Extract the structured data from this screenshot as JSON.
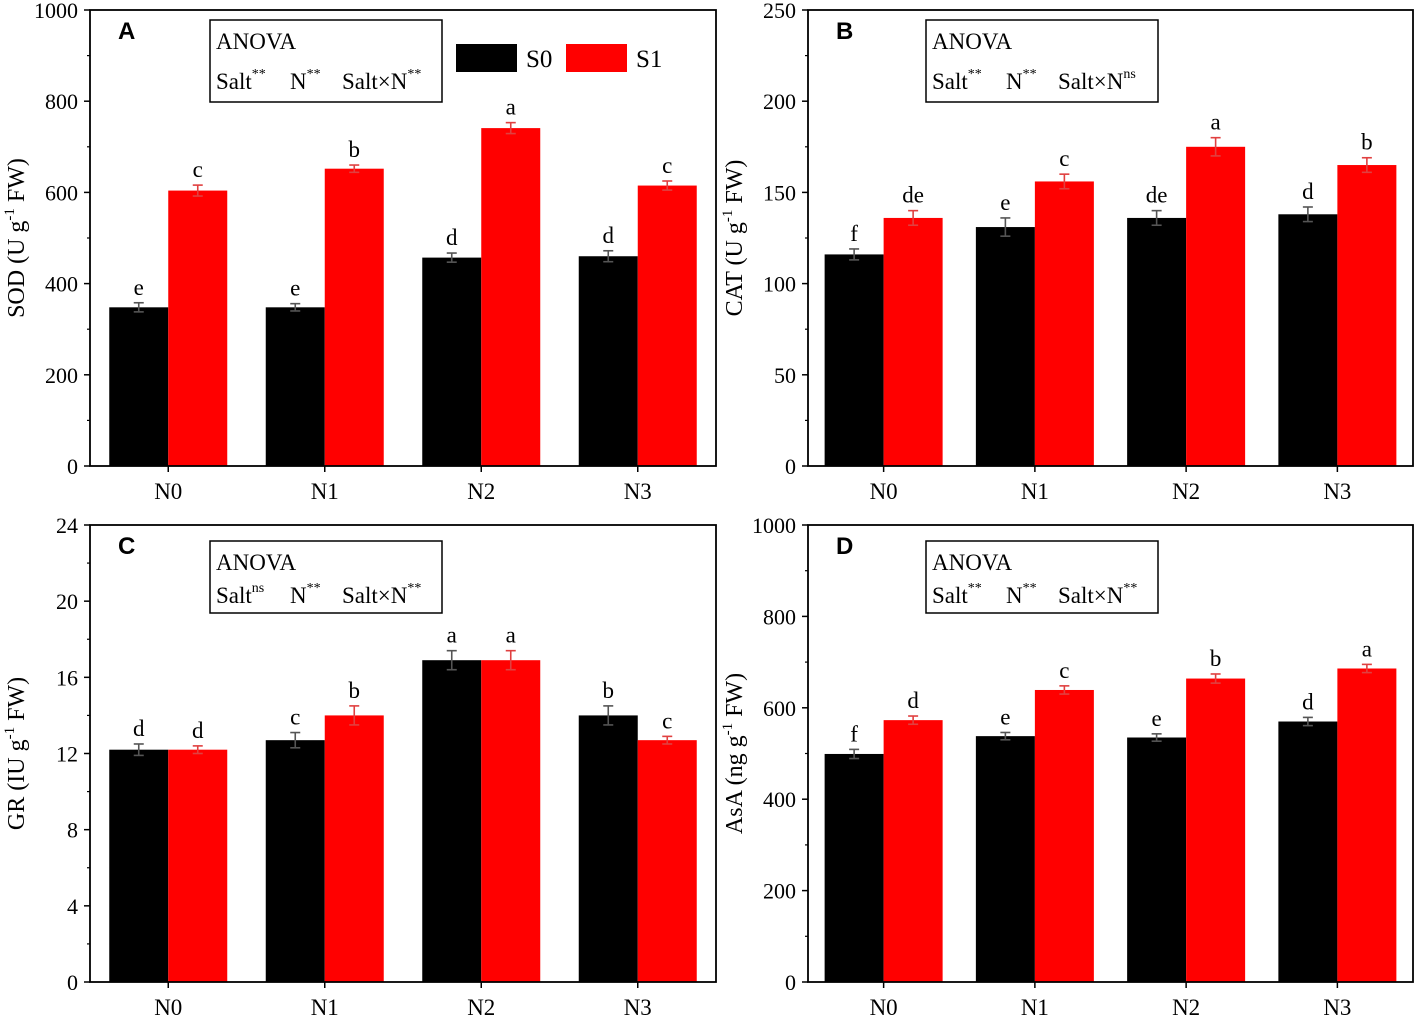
{
  "chart_data": [
    {
      "type": "bar",
      "panel": "A",
      "ylabel": "SOD (U g-1 FW)",
      "ylabel_parts": {
        "pre": "SOD (U g",
        "sup": "-1",
        "post": " FW)"
      },
      "ylim": [
        0,
        1000
      ],
      "yticks": [
        0,
        200,
        400,
        600,
        800,
        1000
      ],
      "categories": [
        "N0",
        "N1",
        "N2",
        "N3"
      ],
      "series": [
        {
          "name": "S0",
          "color": "#000000",
          "values": [
            348,
            348,
            457,
            460
          ],
          "errors": [
            10,
            8,
            10,
            12
          ],
          "letters": [
            "e",
            "e",
            "d",
            "d"
          ]
        },
        {
          "name": "S1",
          "color": "#ff0000",
          "values": [
            604,
            652,
            741,
            615
          ],
          "errors": [
            12,
            8,
            12,
            10
          ],
          "letters": [
            "c",
            "b",
            "a",
            "c"
          ]
        }
      ],
      "anova": {
        "title": "ANOVA",
        "terms": [
          {
            "name": "Salt",
            "sig": "**"
          },
          {
            "name": "N",
            "sig": "**"
          },
          {
            "name": "Salt×N",
            "sig": "**"
          }
        ]
      },
      "legend": [
        {
          "label": "S0",
          "color": "#000000"
        },
        {
          "label": "S1",
          "color": "#ff0000"
        }
      ]
    },
    {
      "type": "bar",
      "panel": "B",
      "ylabel": "CAT (U g-1 FW)",
      "ylabel_parts": {
        "pre": "CAT (U g",
        "sup": "-1",
        "post": " FW)"
      },
      "ylim": [
        0,
        250
      ],
      "yticks": [
        0,
        50,
        100,
        150,
        200,
        250
      ],
      "categories": [
        "N0",
        "N1",
        "N2",
        "N3"
      ],
      "series": [
        {
          "name": "S0",
          "color": "#000000",
          "values": [
            116,
            131,
            136,
            138
          ],
          "errors": [
            3,
            5,
            4,
            4
          ],
          "letters": [
            "f",
            "e",
            "de",
            "d"
          ]
        },
        {
          "name": "S1",
          "color": "#ff0000",
          "values": [
            136,
            156,
            175,
            165
          ],
          "errors": [
            4,
            4,
            5,
            4
          ],
          "letters": [
            "de",
            "c",
            "a",
            "b"
          ]
        }
      ],
      "anova": {
        "title": "ANOVA",
        "terms": [
          {
            "name": "Salt",
            "sig": "**"
          },
          {
            "name": "N",
            "sig": "**"
          },
          {
            "name": "Salt×N",
            "sig": "ns"
          }
        ]
      }
    },
    {
      "type": "bar",
      "panel": "C",
      "ylabel": "GR (IU g-1 FW)",
      "ylabel_parts": {
        "pre": "GR (IU g",
        "sup": "-1",
        "post": " FW)"
      },
      "ylim": [
        0,
        24
      ],
      "yticks": [
        0,
        4,
        8,
        12,
        16,
        20,
        24
      ],
      "categories": [
        "N0",
        "N1",
        "N2",
        "N3"
      ],
      "series": [
        {
          "name": "S0",
          "color": "#000000",
          "values": [
            12.2,
            12.7,
            16.9,
            14.0
          ],
          "errors": [
            0.3,
            0.4,
            0.5,
            0.5
          ],
          "letters": [
            "d",
            "c",
            "a",
            "b"
          ]
        },
        {
          "name": "S1",
          "color": "#ff0000",
          "values": [
            12.2,
            14.0,
            16.9,
            12.7
          ],
          "errors": [
            0.2,
            0.5,
            0.5,
            0.2
          ],
          "letters": [
            "d",
            "b",
            "a",
            "c"
          ]
        }
      ],
      "anova": {
        "title": "ANOVA",
        "terms": [
          {
            "name": "Salt",
            "sig": "ns"
          },
          {
            "name": "N",
            "sig": "**"
          },
          {
            "name": "Salt×N",
            "sig": "**"
          }
        ]
      }
    },
    {
      "type": "bar",
      "panel": "D",
      "ylabel": "AsA (ng g-1 FW)",
      "ylabel_parts": {
        "pre": "AsA (ng g",
        "sup": "-1",
        "post": " FW)"
      },
      "ylim": [
        0,
        1000
      ],
      "yticks": [
        0,
        200,
        400,
        600,
        800,
        1000
      ],
      "categories": [
        "N0",
        "N1",
        "N2",
        "N3"
      ],
      "series": [
        {
          "name": "S0",
          "color": "#000000",
          "values": [
            499,
            538,
            535,
            570
          ],
          "errors": [
            10,
            8,
            8,
            9
          ],
          "letters": [
            "f",
            "e",
            "e",
            "d"
          ]
        },
        {
          "name": "S1",
          "color": "#ff0000",
          "values": [
            573,
            639,
            664,
            686
          ],
          "errors": [
            9,
            9,
            10,
            9
          ],
          "letters": [
            "d",
            "c",
            "b",
            "a"
          ]
        }
      ],
      "anova": {
        "title": "ANOVA",
        "terms": [
          {
            "name": "Salt",
            "sig": "**"
          },
          {
            "name": "N",
            "sig": "**"
          },
          {
            "name": "Salt×N",
            "sig": "**"
          }
        ]
      }
    }
  ]
}
